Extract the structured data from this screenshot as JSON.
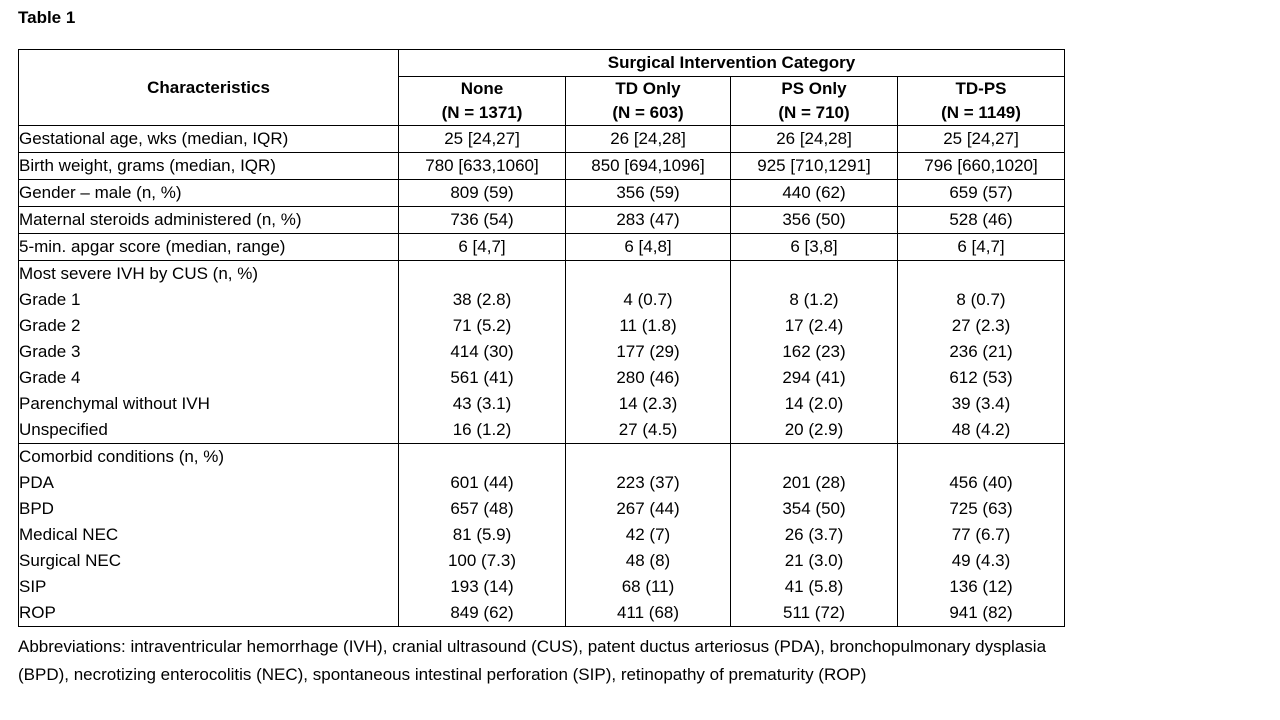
{
  "title": "Table 1",
  "header": {
    "characteristics": "Characteristics",
    "category": "Surgical Intervention Category",
    "columns": [
      {
        "name": "None",
        "n": "(N = 1371)"
      },
      {
        "name": "TD Only",
        "n": "(N = 603)"
      },
      {
        "name": "PS Only",
        "n": "(N = 710)"
      },
      {
        "name": "TD-PS",
        "n": "(N = 1149)"
      }
    ]
  },
  "rows": [
    {
      "label": "Gestational age, wks (median, IQR)",
      "values": [
        "25 [24,27]",
        "26 [24,28]",
        "26 [24,28]",
        "25 [24,27]"
      ]
    },
    {
      "label": "Birth weight, grams (median, IQR)",
      "values": [
        "780 [633,1060]",
        "850 [694,1096]",
        "925 [710,1291]",
        "796 [660,1020]"
      ]
    },
    {
      "label": "Gender – male (n, %)",
      "values": [
        "809 (59)",
        "356 (59)",
        "440 (62)",
        "659 (57)"
      ]
    },
    {
      "label": "Maternal steroids administered (n, %)",
      "values": [
        "736 (54)",
        "283 (47)",
        "356 (50)",
        "528 (46)"
      ]
    },
    {
      "label": "5-min. apgar score (median, range)",
      "values": [
        "6 [4,7]",
        "6 [4,8]",
        "6 [3,8]",
        "6 [4,7]"
      ]
    }
  ],
  "ivh": {
    "label": "Most severe IVH by CUS (n, %)",
    "rows": [
      {
        "label": "Grade 1",
        "values": [
          "38 (2.8)",
          "4 (0.7)",
          "8 (1.2)",
          "8 (0.7)"
        ]
      },
      {
        "label": "Grade 2",
        "values": [
          "71 (5.2)",
          "11 (1.8)",
          "17 (2.4)",
          "27 (2.3)"
        ]
      },
      {
        "label": "Grade 3",
        "values": [
          "414 (30)",
          "177 (29)",
          "162 (23)",
          "236 (21)"
        ]
      },
      {
        "label": "Grade 4",
        "values": [
          "561 (41)",
          "280 (46)",
          "294 (41)",
          "612 (53)"
        ]
      },
      {
        "label": "Parenchymal without IVH",
        "values": [
          "43 (3.1)",
          "14 (2.3)",
          "14 (2.0)",
          "39 (3.4)"
        ]
      },
      {
        "label": "Unspecified",
        "values": [
          "16 (1.2)",
          "27 (4.5)",
          "20 (2.9)",
          "48 (4.2)"
        ]
      }
    ]
  },
  "comorbid": {
    "label": "Comorbid conditions (n, %)",
    "rows": [
      {
        "label": "PDA",
        "values": [
          "601 (44)",
          "223 (37)",
          "201 (28)",
          "456 (40)"
        ]
      },
      {
        "label": "BPD",
        "values": [
          "657 (48)",
          "267 (44)",
          "354 (50)",
          "725 (63)"
        ]
      },
      {
        "label": "Medical NEC",
        "values": [
          "81 (5.9)",
          "42 (7)",
          "26 (3.7)",
          "77 (6.7)"
        ]
      },
      {
        "label": "Surgical NEC",
        "values": [
          "100 (7.3)",
          "48 (8)",
          "21 (3.0)",
          "49 (4.3)"
        ]
      },
      {
        "label": "SIP",
        "values": [
          "193 (14)",
          "68 (11)",
          "41 (5.8)",
          "136 (12)"
        ]
      },
      {
        "label": "ROP",
        "values": [
          "849 (62)",
          "411 (68)",
          "511 (72)",
          "941 (82)"
        ]
      }
    ]
  },
  "abbreviations": "Abbreviations: intraventricular hemorrhage (IVH), cranial ultrasound (CUS), patent ductus arteriosus (PDA), bronchopulmonary dysplasia (BPD), necrotizing enterocolitis (NEC), spontaneous intestinal perforation (SIP), retinopathy of prematurity (ROP)"
}
